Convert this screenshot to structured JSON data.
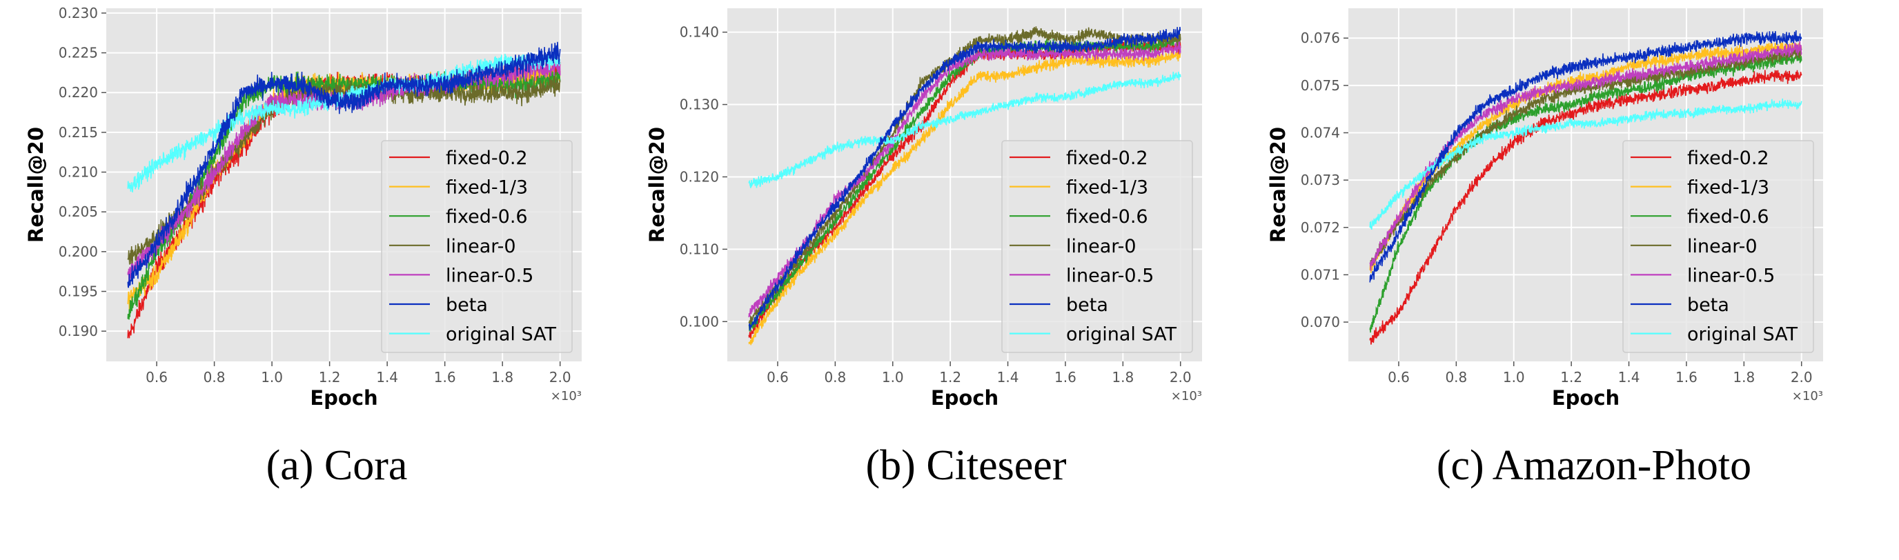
{
  "figure": {
    "captions": [
      "(a)  Cora",
      "(b)  Citeseer",
      "(c)  Amazon-Photo"
    ]
  },
  "colors": {
    "fixed-0.2": "#e31a1c",
    "fixed-1/3": "#ffbf1f",
    "fixed-0.6": "#2ca02c",
    "linear-0": "#6b6b2a",
    "linear-0.5": "#bf3fbf",
    "beta": "#0a2fbf",
    "original SAT": "#55ffff",
    "plot_background": "#e5e5e5",
    "grid": "#ffffff"
  },
  "chart_data": [
    {
      "type": "line",
      "title": "",
      "xlabel": "Epoch",
      "ylabel": "Recall@20",
      "x_offset_label": "×10³",
      "xlim": [
        0.425,
        2.075
      ],
      "ylim": [
        0.1862,
        0.2306
      ],
      "xticks": [
        "0.6",
        "0.8",
        "1.0",
        "1.2",
        "1.4",
        "1.6",
        "1.8",
        "2.0"
      ],
      "yticks": [
        "0.190",
        "0.195",
        "0.200",
        "0.205",
        "0.210",
        "0.215",
        "0.220",
        "0.225",
        "0.230"
      ],
      "grid": true,
      "legend_position": "lower-right",
      "x": [
        0.5,
        0.6,
        0.7,
        0.8,
        0.9,
        1.0,
        1.1,
        1.2,
        1.3,
        1.4,
        1.5,
        1.6,
        1.7,
        1.8,
        1.9,
        2.0
      ],
      "series": [
        {
          "name": "fixed-0.2",
          "values": [
            0.189,
            0.198,
            0.203,
            0.209,
            0.213,
            0.218,
            0.22,
            0.221,
            0.221,
            0.221,
            0.221,
            0.221,
            0.222,
            0.222,
            0.222,
            0.223
          ]
        },
        {
          "name": "fixed-1/3",
          "values": [
            0.194,
            0.197,
            0.203,
            0.21,
            0.214,
            0.219,
            0.221,
            0.221,
            0.221,
            0.221,
            0.221,
            0.221,
            0.221,
            0.221,
            0.222,
            0.222
          ]
        },
        {
          "name": "fixed-0.6",
          "values": [
            0.192,
            0.2,
            0.205,
            0.212,
            0.219,
            0.221,
            0.221,
            0.221,
            0.221,
            0.221,
            0.221,
            0.221,
            0.221,
            0.221,
            0.221,
            0.222
          ]
        },
        {
          "name": "linear-0",
          "values": [
            0.199,
            0.202,
            0.205,
            0.21,
            0.214,
            0.218,
            0.22,
            0.22,
            0.22,
            0.22,
            0.22,
            0.22,
            0.22,
            0.22,
            0.22,
            0.221
          ]
        },
        {
          "name": "linear-0.5",
          "values": [
            0.197,
            0.201,
            0.205,
            0.21,
            0.215,
            0.219,
            0.219,
            0.219,
            0.219,
            0.22,
            0.221,
            0.221,
            0.222,
            0.222,
            0.223,
            0.223
          ]
        },
        {
          "name": "beta",
          "values": [
            0.196,
            0.201,
            0.207,
            0.213,
            0.22,
            0.221,
            0.221,
            0.219,
            0.219,
            0.221,
            0.221,
            0.221,
            0.222,
            0.223,
            0.224,
            0.225
          ]
        },
        {
          "name": "original SAT",
          "values": [
            0.208,
            0.211,
            0.213,
            0.215,
            0.217,
            0.218,
            0.218,
            0.219,
            0.22,
            0.221,
            0.221,
            0.222,
            0.223,
            0.224,
            0.224,
            0.224
          ]
        }
      ]
    },
    {
      "type": "line",
      "title": "",
      "xlabel": "Epoch",
      "ylabel": "Recall@20",
      "x_offset_label": "×10³",
      "xlim": [
        0.425,
        2.075
      ],
      "ylim": [
        0.0945,
        0.1433
      ],
      "xticks": [
        "0.6",
        "0.8",
        "1.0",
        "1.2",
        "1.4",
        "1.6",
        "1.8",
        "2.0"
      ],
      "yticks": [
        "0.100",
        "0.110",
        "0.120",
        "0.130",
        "0.140"
      ],
      "grid": true,
      "legend_position": "lower-right",
      "x": [
        0.5,
        0.6,
        0.7,
        0.8,
        0.9,
        1.0,
        1.1,
        1.2,
        1.3,
        1.4,
        1.5,
        1.6,
        1.7,
        1.8,
        1.9,
        2.0
      ],
      "series": [
        {
          "name": "fixed-0.2",
          "values": [
            0.098,
            0.104,
            0.109,
            0.113,
            0.118,
            0.123,
            0.127,
            0.133,
            0.137,
            0.137,
            0.137,
            0.137,
            0.138,
            0.138,
            0.138,
            0.138
          ]
        },
        {
          "name": "fixed-1/3",
          "values": [
            0.097,
            0.103,
            0.108,
            0.112,
            0.117,
            0.121,
            0.125,
            0.13,
            0.134,
            0.134,
            0.135,
            0.136,
            0.136,
            0.136,
            0.136,
            0.137
          ]
        },
        {
          "name": "fixed-0.6",
          "values": [
            0.099,
            0.104,
            0.109,
            0.114,
            0.119,
            0.124,
            0.129,
            0.134,
            0.137,
            0.138,
            0.138,
            0.138,
            0.138,
            0.138,
            0.138,
            0.139
          ]
        },
        {
          "name": "linear-0",
          "values": [
            0.1,
            0.105,
            0.11,
            0.115,
            0.12,
            0.126,
            0.133,
            0.136,
            0.139,
            0.139,
            0.14,
            0.139,
            0.14,
            0.139,
            0.139,
            0.139
          ]
        },
        {
          "name": "linear-0.5",
          "values": [
            0.101,
            0.106,
            0.111,
            0.117,
            0.12,
            0.125,
            0.131,
            0.135,
            0.137,
            0.137,
            0.137,
            0.137,
            0.137,
            0.137,
            0.137,
            0.138
          ]
        },
        {
          "name": "beta",
          "values": [
            0.099,
            0.105,
            0.111,
            0.116,
            0.121,
            0.127,
            0.132,
            0.136,
            0.138,
            0.138,
            0.138,
            0.138,
            0.138,
            0.139,
            0.139,
            0.14
          ]
        },
        {
          "name": "original SAT",
          "values": [
            0.119,
            0.12,
            0.122,
            0.124,
            0.125,
            0.125,
            0.127,
            0.128,
            0.129,
            0.13,
            0.131,
            0.131,
            0.132,
            0.133,
            0.133,
            0.134
          ]
        }
      ]
    },
    {
      "type": "line",
      "title": "",
      "xlabel": "Epoch",
      "ylabel": "Recall@20",
      "x_offset_label": "×10³",
      "xlim": [
        0.425,
        2.075
      ],
      "ylim": [
        0.06917,
        0.07663
      ],
      "xticks": [
        "0.6",
        "0.8",
        "1.0",
        "1.2",
        "1.4",
        "1.6",
        "1.8",
        "2.0"
      ],
      "yticks": [
        "0.070",
        "0.071",
        "0.072",
        "0.073",
        "0.074",
        "0.075",
        "0.076"
      ],
      "grid": true,
      "legend_position": "lower-right",
      "x": [
        0.5,
        0.6,
        0.7,
        0.8,
        0.9,
        1.0,
        1.1,
        1.2,
        1.3,
        1.4,
        1.5,
        1.6,
        1.7,
        1.8,
        1.9,
        2.0
      ],
      "series": [
        {
          "name": "fixed-0.2",
          "values": [
            0.0696,
            0.0702,
            0.0713,
            0.0724,
            0.0732,
            0.0738,
            0.0742,
            0.0744,
            0.0746,
            0.0747,
            0.0748,
            0.0749,
            0.075,
            0.0751,
            0.0752,
            0.0752
          ]
        },
        {
          "name": "fixed-1/3",
          "values": [
            0.0711,
            0.0722,
            0.0731,
            0.0737,
            0.0742,
            0.0746,
            0.0749,
            0.0751,
            0.0752,
            0.0754,
            0.0755,
            0.0756,
            0.0757,
            0.0757,
            0.0758,
            0.0758
          ]
        },
        {
          "name": "fixed-0.6",
          "values": [
            0.0698,
            0.0716,
            0.0728,
            0.0735,
            0.074,
            0.0743,
            0.0745,
            0.0746,
            0.0748,
            0.0749,
            0.075,
            0.0752,
            0.0753,
            0.0754,
            0.0755,
            0.0756
          ]
        },
        {
          "name": "linear-0",
          "values": [
            0.0712,
            0.0721,
            0.0729,
            0.0735,
            0.074,
            0.0744,
            0.0747,
            0.0749,
            0.075,
            0.0751,
            0.0752,
            0.0753,
            0.0754,
            0.0755,
            0.0756,
            0.0757
          ]
        },
        {
          "name": "linear-0.5",
          "values": [
            0.0712,
            0.0722,
            0.0732,
            0.0739,
            0.0744,
            0.0747,
            0.0749,
            0.075,
            0.0751,
            0.0752,
            0.0753,
            0.0754,
            0.0755,
            0.0756,
            0.0757,
            0.0758
          ]
        },
        {
          "name": "beta",
          "values": [
            0.0709,
            0.0719,
            0.073,
            0.074,
            0.0746,
            0.0749,
            0.0752,
            0.0754,
            0.0755,
            0.0756,
            0.0757,
            0.0758,
            0.0759,
            0.076,
            0.076,
            0.076
          ]
        },
        {
          "name": "original SAT",
          "values": [
            0.072,
            0.0727,
            0.0732,
            0.0736,
            0.0739,
            0.074,
            0.0741,
            0.0742,
            0.0742,
            0.0743,
            0.0744,
            0.0744,
            0.0745,
            0.0745,
            0.0746,
            0.0746
          ]
        }
      ]
    }
  ]
}
